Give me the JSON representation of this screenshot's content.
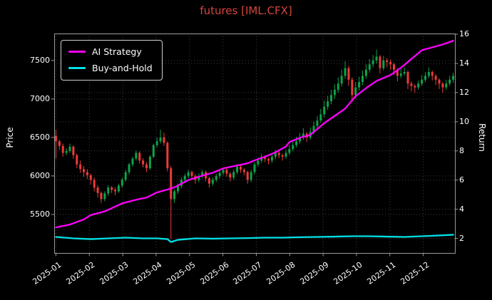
{
  "chart_data": {
    "type": "candlestick+line",
    "title": "futures [IML.CFX]",
    "x_tick_labels": [
      "2025-01",
      "2025-02",
      "2025-03",
      "2025-04",
      "2025-05",
      "2025-06",
      "2025-07",
      "2025-08",
      "2025-09",
      "2025-10",
      "2025-11",
      "2025-12"
    ],
    "left_axis": {
      "label": "Price",
      "ticks": [
        5500,
        6000,
        6500,
        7000,
        7500
      ],
      "range": [
        5000,
        7850
      ]
    },
    "right_axis": {
      "label": "Return",
      "ticks": [
        2,
        4,
        6,
        8,
        10,
        12,
        14,
        16
      ],
      "range": [
        1.0,
        16.05
      ]
    },
    "grid": {
      "on": true,
      "style": "dotted"
    },
    "colors": {
      "background": "#000000",
      "text": "#ffffff",
      "title": "#d4453e",
      "grid": "#3d3d3d",
      "axis": "#999999",
      "up": "#0ea34a",
      "down": "#ee3a3a",
      "ai_strategy": "#ff00ff",
      "buy_and_hold": "#00e0e6"
    },
    "legend": {
      "position": "top-left",
      "items": [
        {
          "label": "AI Strategy",
          "color": "#ff00ff"
        },
        {
          "label": "Buy-and-Hold",
          "color": "#00e0e6"
        }
      ]
    },
    "candles": {
      "ohlc": [
        [
          6520,
          6600,
          6230,
          6450
        ],
        [
          6450,
          6470,
          6340,
          6390
        ],
        [
          6390,
          6420,
          6250,
          6300
        ],
        [
          6300,
          6360,
          6270,
          6325
        ],
        [
          6325,
          6420,
          6300,
          6380
        ],
        [
          6380,
          6400,
          6220,
          6270
        ],
        [
          6270,
          6290,
          6100,
          6150
        ],
        [
          6150,
          6200,
          6040,
          6090
        ],
        [
          6090,
          6130,
          5990,
          6050
        ],
        [
          6050,
          6090,
          5960,
          6010
        ],
        [
          6010,
          6030,
          5890,
          5950
        ],
        [
          5950,
          5980,
          5800,
          5850
        ],
        [
          5850,
          5880,
          5720,
          5780
        ],
        [
          5780,
          5800,
          5650,
          5700
        ],
        [
          5700,
          5800,
          5670,
          5775
        ],
        [
          5775,
          5880,
          5740,
          5850
        ],
        [
          5850,
          5870,
          5780,
          5820
        ],
        [
          5820,
          5850,
          5750,
          5800
        ],
        [
          5800,
          5900,
          5780,
          5875
        ],
        [
          5875,
          5980,
          5850,
          5950
        ],
        [
          5950,
          6080,
          5930,
          6050
        ],
        [
          6050,
          6170,
          6020,
          6150
        ],
        [
          6150,
          6250,
          6120,
          6225
        ],
        [
          6225,
          6330,
          6200,
          6300
        ],
        [
          6300,
          6320,
          6160,
          6200
        ],
        [
          6200,
          6230,
          6110,
          6150
        ],
        [
          6150,
          6180,
          6050,
          6100
        ],
        [
          6100,
          6270,
          6080,
          6250
        ],
        [
          6250,
          6420,
          6230,
          6400
        ],
        [
          6400,
          6500,
          6370,
          6450
        ],
        [
          6450,
          6600,
          6420,
          6500
        ],
        [
          6500,
          6560,
          6390,
          6430
        ],
        [
          6430,
          6450,
          6060,
          6100
        ],
        [
          6100,
          6130,
          5180,
          5700
        ],
        [
          5700,
          5830,
          5650,
          5800
        ],
        [
          5800,
          5900,
          5770,
          5870
        ],
        [
          5870,
          5980,
          5840,
          5950
        ],
        [
          5950,
          6030,
          5920,
          6000
        ],
        [
          6000,
          6080,
          5970,
          6050
        ],
        [
          6050,
          6070,
          5950,
          6000
        ],
        [
          6000,
          6020,
          5900,
          5950
        ],
        [
          5950,
          6030,
          5920,
          6000
        ],
        [
          6000,
          6080,
          5970,
          6050
        ],
        [
          6050,
          6070,
          5930,
          5970
        ],
        [
          5970,
          5990,
          5850,
          5900
        ],
        [
          5900,
          5980,
          5870,
          5950
        ],
        [
          5950,
          6030,
          5920,
          6000
        ],
        [
          6000,
          6070,
          5970,
          6040
        ],
        [
          6040,
          6110,
          6010,
          6080
        ],
        [
          6080,
          6100,
          5990,
          6030
        ],
        [
          6030,
          6050,
          5930,
          5980
        ],
        [
          5980,
          6080,
          5950,
          6050
        ],
        [
          6050,
          6150,
          6020,
          6120
        ],
        [
          6120,
          6140,
          6040,
          6080
        ],
        [
          6080,
          6100,
          6010,
          6050
        ],
        [
          6050,
          6070,
          5900,
          5950
        ],
        [
          5950,
          6080,
          5920,
          6050
        ],
        [
          6050,
          6180,
          6020,
          6150
        ],
        [
          6150,
          6240,
          6120,
          6200
        ],
        [
          6200,
          6290,
          6170,
          6250
        ],
        [
          6250,
          6270,
          6180,
          6220
        ],
        [
          6220,
          6240,
          6150,
          6200
        ],
        [
          6200,
          6290,
          6170,
          6250
        ],
        [
          6250,
          6340,
          6220,
          6300
        ],
        [
          6300,
          6320,
          6230,
          6270
        ],
        [
          6270,
          6290,
          6200,
          6250
        ],
        [
          6250,
          6340,
          6220,
          6300
        ],
        [
          6300,
          6400,
          6270,
          6350
        ],
        [
          6350,
          6450,
          6320,
          6400
        ],
        [
          6400,
          6510,
          6370,
          6450
        ],
        [
          6450,
          6560,
          6420,
          6500
        ],
        [
          6500,
          6620,
          6470,
          6550
        ],
        [
          6550,
          6570,
          6440,
          6500
        ],
        [
          6500,
          6630,
          6470,
          6570
        ],
        [
          6570,
          6710,
          6540,
          6650
        ],
        [
          6650,
          6780,
          6620,
          6720
        ],
        [
          6720,
          6870,
          6690,
          6800
        ],
        [
          6800,
          6980,
          6760,
          6900
        ],
        [
          6900,
          7040,
          6860,
          6970
        ],
        [
          6970,
          7120,
          6930,
          7050
        ],
        [
          7050,
          7190,
          7000,
          7120
        ],
        [
          7120,
          7280,
          7080,
          7200
        ],
        [
          7200,
          7380,
          7160,
          7300
        ],
        [
          7300,
          7490,
          7260,
          7400
        ],
        [
          7400,
          7430,
          7170,
          7250
        ],
        [
          7250,
          7280,
          6960,
          7050
        ],
        [
          7050,
          7220,
          7010,
          7150
        ],
        [
          7150,
          7290,
          7110,
          7220
        ],
        [
          7220,
          7370,
          7180,
          7300
        ],
        [
          7300,
          7450,
          7260,
          7380
        ],
        [
          7380,
          7520,
          7340,
          7450
        ],
        [
          7450,
          7570,
          7410,
          7500
        ],
        [
          7500,
          7640,
          7460,
          7550
        ],
        [
          7550,
          7570,
          7330,
          7400
        ],
        [
          7400,
          7560,
          7370,
          7500
        ],
        [
          7500,
          7530,
          7410,
          7480
        ],
        [
          7480,
          7510,
          7380,
          7450
        ],
        [
          7450,
          7470,
          7310,
          7380
        ],
        [
          7380,
          7400,
          7230,
          7300
        ],
        [
          7300,
          7390,
          7270,
          7330
        ],
        [
          7330,
          7410,
          7300,
          7350
        ],
        [
          7350,
          7370,
          7130,
          7200
        ],
        [
          7200,
          7230,
          7100,
          7170
        ],
        [
          7170,
          7190,
          7080,
          7150
        ],
        [
          7150,
          7240,
          7120,
          7200
        ],
        [
          7200,
          7310,
          7170,
          7250
        ],
        [
          7250,
          7350,
          7220,
          7300
        ],
        [
          7300,
          7410,
          7270,
          7350
        ],
        [
          7350,
          7370,
          7240,
          7300
        ],
        [
          7300,
          7320,
          7180,
          7250
        ],
        [
          7250,
          7270,
          7130,
          7200
        ],
        [
          7200,
          7220,
          7080,
          7150
        ],
        [
          7150,
          7250,
          7120,
          7200
        ],
        [
          7200,
          7300,
          7170,
          7250
        ],
        [
          7250,
          7340,
          7210,
          7300
        ]
      ]
    },
    "series": [
      {
        "name": "Buy-and-Hold",
        "axis": "right",
        "color": "#00e0e6",
        "x": [
          0,
          5,
          10,
          15,
          20,
          25,
          29,
          32,
          33,
          35,
          40,
          45,
          50,
          55,
          60,
          65,
          70,
          75,
          80,
          85,
          90,
          95,
          100,
          105,
          110,
          114
        ],
        "values": [
          2.1,
          2.0,
          1.95,
          2.0,
          2.05,
          2.0,
          2.0,
          1.95,
          1.75,
          1.9,
          2.0,
          1.98,
          2.0,
          2.02,
          2.05,
          2.05,
          2.08,
          2.1,
          2.12,
          2.15,
          2.15,
          2.12,
          2.1,
          2.15,
          2.2,
          2.25
        ]
      },
      {
        "name": "AI Strategy",
        "axis": "right",
        "color": "#ff00ff",
        "x": [
          0,
          4,
          8,
          10,
          14,
          19,
          23,
          26,
          29,
          32,
          34,
          38,
          42,
          45,
          48,
          52,
          55,
          57,
          60,
          63,
          66,
          67,
          70,
          73,
          77,
          80,
          83,
          86,
          89,
          92,
          96,
          99,
          102,
          105,
          108,
          111,
          114
        ],
        "values": [
          2.75,
          2.95,
          3.3,
          3.6,
          3.85,
          4.4,
          4.65,
          4.8,
          5.15,
          5.35,
          5.5,
          6.0,
          6.3,
          6.5,
          6.8,
          7.0,
          7.15,
          7.35,
          7.6,
          7.9,
          8.3,
          8.6,
          8.9,
          9.1,
          9.9,
          10.4,
          10.9,
          11.75,
          12.3,
          12.8,
          13.2,
          13.7,
          14.3,
          14.9,
          15.1,
          15.3,
          15.55
        ]
      }
    ]
  }
}
